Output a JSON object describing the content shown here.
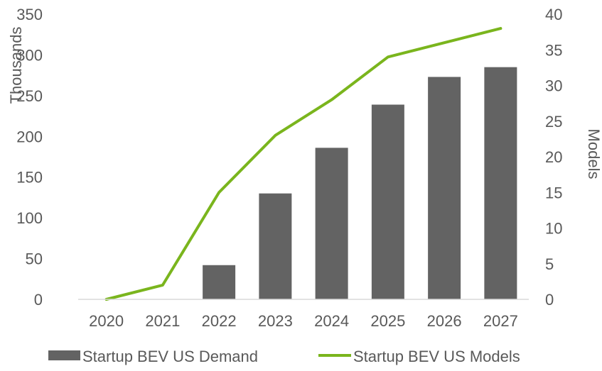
{
  "chart_data": {
    "type": "bar",
    "categories": [
      "2020",
      "2021",
      "2022",
      "2023",
      "2024",
      "2025",
      "2026",
      "2027"
    ],
    "series": [
      {
        "name": "Startup BEV US Demand",
        "type": "bar",
        "axis": "left",
        "color": "#636363",
        "values": [
          0,
          0,
          42,
          130,
          186,
          239,
          273,
          285
        ]
      },
      {
        "name": "Startup BEV US Models",
        "type": "line",
        "axis": "right",
        "color": "#7ab51d",
        "values": [
          0,
          2,
          15,
          23,
          28,
          34,
          36,
          38
        ]
      }
    ],
    "ylabel": "Thousands",
    "y2label": "Models",
    "ylim": [
      0,
      350
    ],
    "y2lim": [
      0,
      40
    ],
    "yticks": [
      "0",
      "50",
      "100",
      "150",
      "200",
      "250",
      "300",
      "350"
    ],
    "y2ticks": [
      "0",
      "5",
      "10",
      "15",
      "20",
      "25",
      "30",
      "35",
      "40"
    ],
    "grid": false,
    "legend_position": "bottom"
  }
}
